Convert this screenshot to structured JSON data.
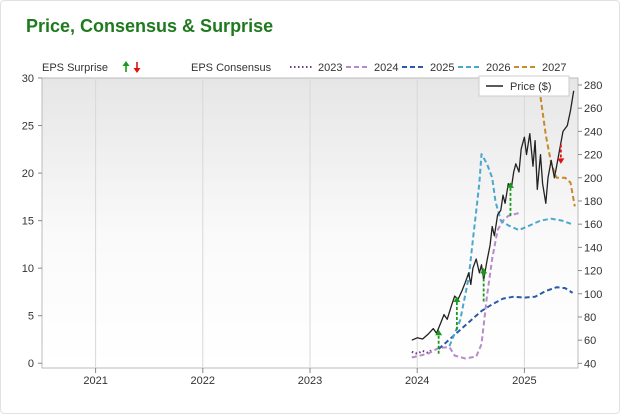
{
  "header": {
    "title": "Price, Consensus & Surprise"
  },
  "legend": {
    "surprise_label": "EPS Surprise",
    "consensus_label": "EPS Consensus",
    "price_label": "Price ($)"
  },
  "colors": {
    "title": "#1f7a1f",
    "price": "#222222",
    "surprise_up": "#1a9a1a",
    "surprise_down": "#e01010",
    "grid": "#d8d8d8"
  },
  "chart_data": {
    "type": "line",
    "title": "Price, Consensus & Surprise",
    "x_axis": {
      "ticks": [
        "2021",
        "2022",
        "2023",
        "2024",
        "2025"
      ],
      "range": [
        "2020-07",
        "2025-07"
      ]
    },
    "y_left": {
      "label": "EPS",
      "ticks": [
        0,
        5,
        10,
        15,
        20,
        25,
        30
      ],
      "range": [
        -0.5,
        30
      ]
    },
    "y_right": {
      "label": "Price ($)",
      "ticks": [
        40,
        60,
        80,
        100,
        120,
        140,
        160,
        180,
        200,
        220,
        240,
        260,
        280
      ],
      "range": [
        36,
        286
      ]
    },
    "legend_placement": "top",
    "grid": true,
    "series": [
      {
        "name": "2023",
        "axis": "left",
        "color": "#6a3a8a",
        "dash": "dot",
        "points": [
          [
            2023.95,
            1.2
          ],
          [
            2024.0,
            1.0
          ],
          [
            2024.05,
            1.3
          ],
          [
            2024.1,
            1.1
          ],
          [
            2024.15,
            1.5
          ]
        ]
      },
      {
        "name": "2024",
        "axis": "left",
        "color": "#b98ac9",
        "dash": "dash",
        "points": [
          [
            2023.95,
            0.6
          ],
          [
            2024.1,
            1.0
          ],
          [
            2024.2,
            1.6
          ],
          [
            2024.3,
            1.7
          ],
          [
            2024.35,
            0.8
          ],
          [
            2024.45,
            0.5
          ],
          [
            2024.55,
            0.7
          ],
          [
            2024.6,
            2.0
          ],
          [
            2024.65,
            7.0
          ],
          [
            2024.7,
            11.0
          ],
          [
            2024.75,
            14.0
          ],
          [
            2024.8,
            15.0
          ],
          [
            2024.85,
            15.5
          ],
          [
            2024.95,
            15.8
          ]
        ]
      },
      {
        "name": "2025",
        "axis": "left",
        "color": "#2a5aa8",
        "dash": "dash",
        "points": [
          [
            2024.2,
            1.5
          ],
          [
            2024.3,
            2.5
          ],
          [
            2024.4,
            3.5
          ],
          [
            2024.5,
            4.5
          ],
          [
            2024.6,
            5.5
          ],
          [
            2024.7,
            6.2
          ],
          [
            2024.8,
            6.8
          ],
          [
            2024.9,
            7.0
          ],
          [
            2025.0,
            6.9
          ],
          [
            2025.1,
            7.0
          ],
          [
            2025.2,
            7.6
          ],
          [
            2025.3,
            8.0
          ],
          [
            2025.38,
            7.9
          ],
          [
            2025.45,
            7.4
          ]
        ]
      },
      {
        "name": "2026",
        "axis": "left",
        "color": "#4aa8cc",
        "dash": "dash",
        "points": [
          [
            2024.3,
            1.8
          ],
          [
            2024.4,
            4.5
          ],
          [
            2024.48,
            9.0
          ],
          [
            2024.52,
            13.0
          ],
          [
            2024.55,
            16.0
          ],
          [
            2024.58,
            19.0
          ],
          [
            2024.6,
            22.0
          ],
          [
            2024.65,
            21.0
          ],
          [
            2024.7,
            19.5
          ],
          [
            2024.73,
            17.0
          ],
          [
            2024.78,
            15.0
          ],
          [
            2024.85,
            14.5
          ],
          [
            2024.95,
            14.0
          ],
          [
            2025.05,
            14.5
          ],
          [
            2025.15,
            15.0
          ],
          [
            2025.25,
            15.2
          ],
          [
            2025.35,
            15.0
          ],
          [
            2025.45,
            14.6
          ]
        ]
      },
      {
        "name": "2027",
        "axis": "left",
        "color": "#c8892a",
        "dash": "dash",
        "points": [
          [
            2025.15,
            28.0
          ],
          [
            2025.2,
            24.0
          ],
          [
            2025.25,
            21.0
          ],
          [
            2025.3,
            19.5
          ],
          [
            2025.38,
            19.5
          ],
          [
            2025.43,
            19.0
          ],
          [
            2025.47,
            16.5
          ]
        ]
      },
      {
        "name": "Price ($)",
        "axis": "right",
        "color": "#222222",
        "dash": "solid",
        "points": [
          [
            2023.95,
            60
          ],
          [
            2024.0,
            62
          ],
          [
            2024.05,
            61
          ],
          [
            2024.1,
            65
          ],
          [
            2024.15,
            70
          ],
          [
            2024.18,
            66
          ],
          [
            2024.22,
            75
          ],
          [
            2024.25,
            82
          ],
          [
            2024.28,
            78
          ],
          [
            2024.32,
            90
          ],
          [
            2024.35,
            98
          ],
          [
            2024.38,
            95
          ],
          [
            2024.42,
            103
          ],
          [
            2024.45,
            110
          ],
          [
            2024.48,
            118
          ],
          [
            2024.5,
            108
          ],
          [
            2024.52,
            122
          ],
          [
            2024.55,
            130
          ],
          [
            2024.58,
            118
          ],
          [
            2024.6,
            125
          ],
          [
            2024.62,
            112
          ],
          [
            2024.65,
            128
          ],
          [
            2024.68,
            142
          ],
          [
            2024.7,
            158
          ],
          [
            2024.72,
            150
          ],
          [
            2024.75,
            168
          ],
          [
            2024.78,
            172
          ],
          [
            2024.8,
            185
          ],
          [
            2024.82,
            178
          ],
          [
            2024.85,
            195
          ],
          [
            2024.88,
            192
          ],
          [
            2024.9,
            205
          ],
          [
            2024.92,
            212
          ],
          [
            2024.95,
            205
          ],
          [
            2024.97,
            225
          ],
          [
            2025.0,
            235
          ],
          [
            2025.02,
            220
          ],
          [
            2025.05,
            238
          ],
          [
            2025.08,
            210
          ],
          [
            2025.1,
            232
          ],
          [
            2025.12,
            190
          ],
          [
            2025.15,
            220
          ],
          [
            2025.17,
            195
          ],
          [
            2025.2,
            178
          ],
          [
            2025.22,
            200
          ],
          [
            2025.25,
            215
          ],
          [
            2025.28,
            200
          ],
          [
            2025.3,
            210
          ],
          [
            2025.33,
            225
          ],
          [
            2025.36,
            240
          ],
          [
            2025.4,
            245
          ],
          [
            2025.43,
            258
          ],
          [
            2025.46,
            275
          ]
        ]
      }
    ],
    "surprises": [
      {
        "date": 2024.2,
        "y_from": 1.0,
        "y_to": 3.0,
        "direction": "up"
      },
      {
        "date": 2024.37,
        "y_from": 3.5,
        "y_to": 6.5,
        "direction": "up"
      },
      {
        "date": 2024.62,
        "y_from": 6.5,
        "y_to": 9.5,
        "direction": "up"
      },
      {
        "date": 2024.87,
        "y_from": 15.5,
        "y_to": 18.5,
        "direction": "up"
      },
      {
        "date": 2025.34,
        "y_from": 23.0,
        "y_to": 21.5,
        "direction": "down"
      }
    ]
  }
}
